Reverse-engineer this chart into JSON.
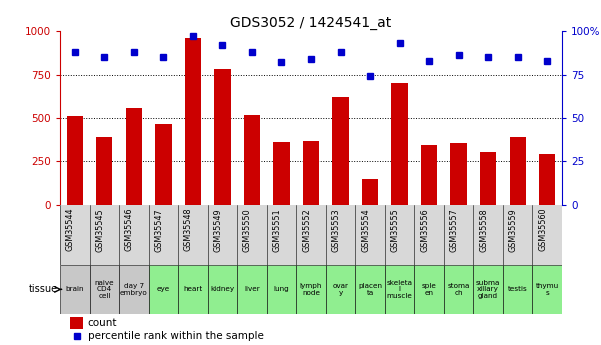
{
  "title": "GDS3052 / 1424541_at",
  "gsm_ids": [
    "GSM35544",
    "GSM35545",
    "GSM35546",
    "GSM35547",
    "GSM35548",
    "GSM35549",
    "GSM35550",
    "GSM35551",
    "GSM35552",
    "GSM35553",
    "GSM35554",
    "GSM35555",
    "GSM35556",
    "GSM35557",
    "GSM35558",
    "GSM35559",
    "GSM35560"
  ],
  "tissues": [
    "brain",
    "naive\nCD4\ncell",
    "day 7\nembryо",
    "eye",
    "heart",
    "kidney",
    "liver",
    "lung",
    "lymph\nnode",
    "ovar\ny",
    "placen\nta",
    "skeleta\nl\nmuscle",
    "sple\nen",
    "stoma\nch",
    "subma\nxillary\ngland",
    "testis",
    "thymu\ns"
  ],
  "tissue_colors": [
    "#c8c8c8",
    "#c8c8c8",
    "#c8c8c8",
    "#90ee90",
    "#90ee90",
    "#90ee90",
    "#90ee90",
    "#90ee90",
    "#90ee90",
    "#90ee90",
    "#90ee90",
    "#90ee90",
    "#90ee90",
    "#90ee90",
    "#90ee90",
    "#90ee90",
    "#90ee90"
  ],
  "counts": [
    510,
    390,
    555,
    465,
    960,
    780,
    520,
    360,
    370,
    620,
    150,
    700,
    345,
    355,
    305,
    390,
    295
  ],
  "percentiles": [
    88,
    85,
    88,
    85,
    97,
    92,
    88,
    82,
    84,
    88,
    74,
    93,
    83,
    86,
    85,
    85,
    83
  ],
  "bar_color": "#cc0000",
  "dot_color": "#0000cc",
  "ylim_left": [
    0,
    1000
  ],
  "ylim_right": [
    0,
    100
  ],
  "yticks_left": [
    0,
    250,
    500,
    750,
    1000
  ],
  "yticks_right": [
    0,
    25,
    50,
    75,
    100
  ],
  "bg_color": "#ffffff",
  "legend_count_label": "count",
  "legend_pct_label": "percentile rank within the sample"
}
